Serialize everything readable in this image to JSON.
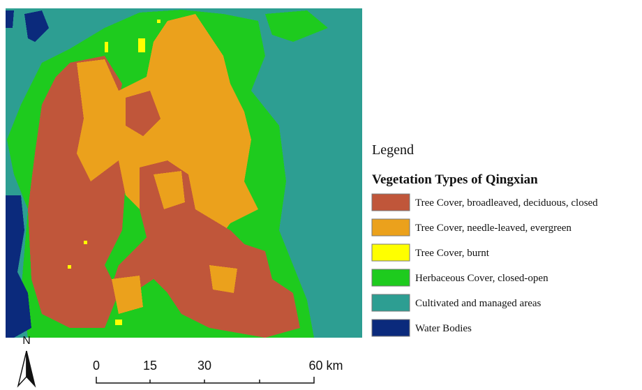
{
  "legend": {
    "heading": "Legend",
    "title": "Vegetation Types of Qingxian",
    "items": [
      {
        "label": "Tree Cover, broadleaved, deciduous, closed",
        "color": "#c0563a"
      },
      {
        "label": "Tree Cover, needle-leaved, evergreen",
        "color": "#eba11c"
      },
      {
        "label": "Tree Cover, burnt",
        "color": "#ffff00"
      },
      {
        "label": "Herbaceous Cover, closed-open",
        "color": "#1ecb1e"
      },
      {
        "label": "Cultivated and managed areas",
        "color": "#2d9e92"
      },
      {
        "label": "Water Bodies",
        "color": "#0b2a7c"
      }
    ]
  },
  "north_arrow": {
    "label": "N"
  },
  "scale_bar": {
    "labels": [
      "0",
      "15",
      "30",
      "60 km"
    ]
  }
}
